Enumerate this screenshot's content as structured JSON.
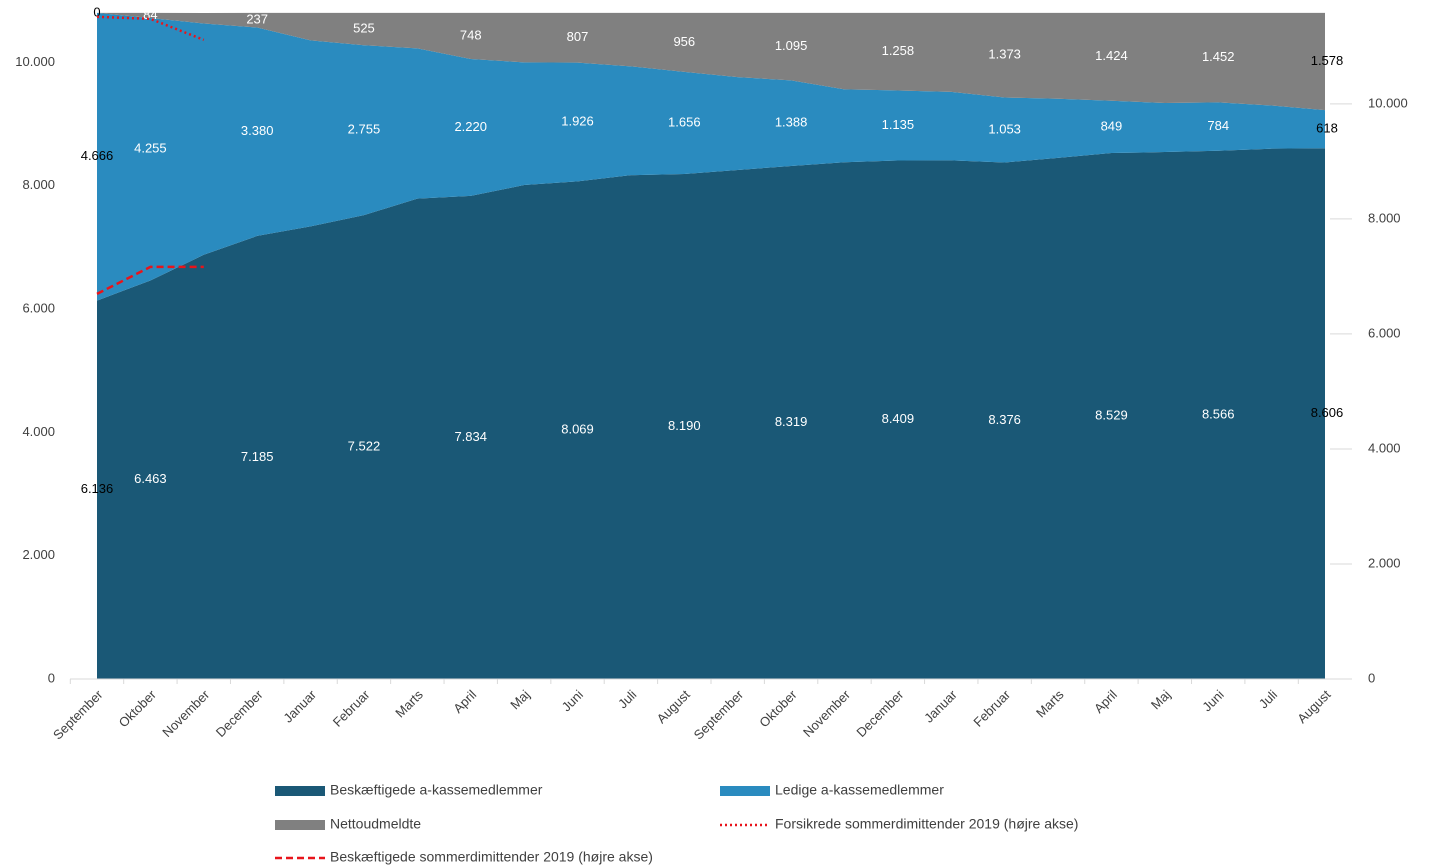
{
  "chart_data": {
    "type": "area",
    "categories": [
      "September",
      "Oktober",
      "November",
      "December",
      "Januar",
      "Februar",
      "Marts",
      "April",
      "Maj",
      "Juni",
      "Juli",
      "August",
      "September",
      "Oktober",
      "November",
      "December",
      "Januar",
      "Februar",
      "Marts",
      "April",
      "Maj",
      "Juni",
      "Juli",
      "August"
    ],
    "stacked": true,
    "ylim": [
      0,
      10800
    ],
    "yticks": [
      0,
      {
        "value": 2000,
        "label": "2.000"
      },
      {
        "value": 4000,
        "label": "4.000"
      },
      {
        "value": 6000,
        "label": "6.000"
      },
      {
        "value": 8000,
        "label": "8.000"
      },
      {
        "value": 10000,
        "label": "10.000"
      }
    ],
    "y2lim": [
      0,
      11580
    ],
    "y2ticks": [
      0,
      {
        "value": 2000,
        "label": "2.000"
      },
      {
        "value": 4000,
        "label": "4.000"
      },
      {
        "value": 6000,
        "label": "6.000"
      },
      {
        "value": 8000,
        "label": "8.000"
      },
      {
        "value": 10000,
        "label": "10.000"
      }
    ],
    "legend": "bottom",
    "series": [
      {
        "name": "Beskæftigede a-kassemedlemmer",
        "color": "#1a5876",
        "type": "area",
        "values": [
          6136,
          6463,
          6880,
          7185,
          7340,
          7522,
          7790,
          7834,
          8010,
          8069,
          8170,
          8190,
          8255,
          8319,
          8380,
          8409,
          8410,
          8376,
          8450,
          8529,
          8545,
          8566,
          8600,
          8606
        ],
        "value_labels": [
          "6.136",
          "6.463",
          null,
          "7.185",
          null,
          "7.522",
          null,
          "7.834",
          null,
          "8.069",
          null,
          "8.190",
          null,
          "8.319",
          null,
          "8.409",
          null,
          "8.376",
          null,
          "8.529",
          null,
          "8.566",
          null,
          "8.606"
        ]
      },
      {
        "name": "Ledige a-kassemedlemmer",
        "color": "#2a8bbf",
        "type": "area",
        "values": [
          4666,
          4255,
          3750,
          3380,
          3016,
          2755,
          2437,
          2220,
          1990,
          1926,
          1765,
          1656,
          1505,
          1388,
          1182,
          1135,
          1110,
          1053,
          960,
          849,
          795,
          784,
          700,
          618
        ],
        "value_labels": [
          "4.666",
          "4.255",
          null,
          "3.380",
          null,
          "2.755",
          null,
          "2.220",
          null,
          "1.926",
          null,
          "1.656",
          null,
          "1.388",
          null,
          "1.135",
          null,
          "1.053",
          null,
          "849",
          null,
          "784",
          null,
          "618"
        ]
      },
      {
        "name": "Nettoudmeldte",
        "color": "#808080",
        "type": "area",
        "values": [
          0,
          84,
          170,
          237,
          446,
          525,
          575,
          748,
          802,
          807,
          867,
          956,
          1042,
          1095,
          1240,
          1258,
          1282,
          1373,
          1392,
          1424,
          1462,
          1452,
          1502,
          1578
        ],
        "value_labels": [
          "0",
          "84",
          null,
          "237",
          null,
          "525",
          null,
          "748",
          null,
          "807",
          null,
          "956",
          null,
          "1.095",
          null,
          "1.258",
          null,
          "1.373",
          null,
          "1.424",
          null,
          "1.452",
          null,
          "1.578"
        ]
      },
      {
        "name": "Forsikrede sommerdimittender 2019 (højre akse)",
        "color": "#e8141b",
        "type": "line",
        "dash": "dotted",
        "axis": "y2",
        "values": [
          11513,
          11478,
          11113,
          null,
          null,
          null,
          null,
          null,
          null,
          null,
          null,
          null,
          null,
          null,
          null,
          null,
          null,
          null,
          null,
          null,
          null,
          null,
          null,
          null
        ]
      },
      {
        "name": "Beskæftigede sommerdimittender 2019 (højre akse)",
        "color": "#e8141b",
        "type": "line",
        "dash": "dashed",
        "axis": "y2",
        "values": [
          6696,
          7165,
          7165,
          null,
          null,
          null,
          null,
          null,
          null,
          null,
          null,
          null,
          null,
          null,
          null,
          null,
          null,
          null,
          null,
          null,
          null,
          null,
          null,
          null
        ]
      }
    ]
  }
}
